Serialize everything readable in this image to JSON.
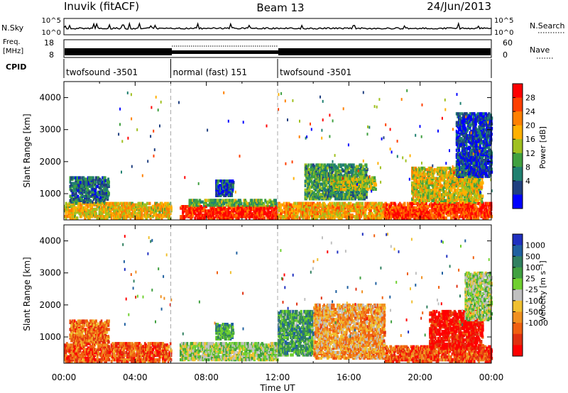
{
  "header": {
    "station": "Inuvik (fitACF)",
    "beam": "Beam 13",
    "date": "24/Jun/2013"
  },
  "noise_panel": {
    "left_label": "N.Sky",
    "right_label": "N.Search",
    "left_ticks": [
      "10^5",
      "10^0"
    ],
    "right_ticks": [
      "10^5",
      "10^0"
    ]
  },
  "freq_panel": {
    "left_label_line1": "Freq.",
    "left_label_line2": "[MHz]",
    "left_ticks": [
      "18",
      "8"
    ],
    "right_ticks": [
      "60",
      "0"
    ],
    "right_label": "Nave"
  },
  "cpid_panel": {
    "label": "CPID",
    "segments": [
      {
        "name": "twofsound -3501",
        "start_h": 0,
        "end_h": 6
      },
      {
        "name": "normal (fast) 151",
        "start_h": 6,
        "end_h": 12
      },
      {
        "name": "twofsound -3501",
        "start_h": 12,
        "end_h": 24
      }
    ]
  },
  "power_colorbar": {
    "label": "Power [dB]",
    "ticks": [
      "28",
      "24",
      "20",
      "16",
      "12",
      "8",
      "4"
    ],
    "colors": [
      "#ff0000",
      "#ff4000",
      "#ff8000",
      "#ffb000",
      "#a0c020",
      "#40a040",
      "#208070",
      "#204080",
      "#0000ff"
    ]
  },
  "velocity_colorbar": {
    "label": "Velocity [m s⁻¹]",
    "ticks": [
      "1000",
      "500",
      "100",
      "25",
      "-25",
      "-100",
      "-500",
      "-1000"
    ],
    "colors": [
      "#2030c0",
      "#2060a0",
      "#308060",
      "#40a040",
      "#70d030",
      "#c0c0c0",
      "#f0c030",
      "#f09020",
      "#f06010",
      "#e03010",
      "#ff0000"
    ]
  },
  "chart_data": [
    {
      "type": "heatmap",
      "name": "power",
      "xlabel": "",
      "ylabel": "Slant Range [km]",
      "x_range_h": [
        0,
        24
      ],
      "ylim": [
        180,
        4500
      ],
      "yticks": [
        "4000",
        "3000",
        "2000",
        "1000"
      ],
      "ytick_values": [
        4000,
        3000,
        2000,
        1000
      ],
      "patches": [
        {
          "x0": 0,
          "x1": 6,
          "y0": 200,
          "y1": 700,
          "level": 0.6
        },
        {
          "x0": 0.3,
          "x1": 2.5,
          "y0": 700,
          "y1": 1500,
          "level": 0.25
        },
        {
          "x0": 6.5,
          "x1": 12,
          "y0": 200,
          "y1": 600,
          "level": 0.9
        },
        {
          "x0": 7,
          "x1": 12,
          "y0": 600,
          "y1": 800,
          "level": 0.4
        },
        {
          "x0": 8.5,
          "x1": 9.5,
          "y0": 900,
          "y1": 1400,
          "level": 0.2
        },
        {
          "x0": 12,
          "x1": 18,
          "y0": 200,
          "y1": 700,
          "level": 0.65
        },
        {
          "x0": 13.5,
          "x1": 17,
          "y0": 800,
          "y1": 1900,
          "level": 0.35
        },
        {
          "x0": 15,
          "x1": 17.5,
          "y0": 1100,
          "y1": 1500,
          "level": 0.5
        },
        {
          "x0": 18,
          "x1": 24,
          "y0": 200,
          "y1": 700,
          "level": 0.85
        },
        {
          "x0": 19.5,
          "x1": 23.5,
          "y0": 700,
          "y1": 1800,
          "level": 0.55
        },
        {
          "x0": 22,
          "x1": 24,
          "y0": 1500,
          "y1": 3500,
          "level": 0.15
        }
      ]
    },
    {
      "type": "heatmap",
      "name": "velocity",
      "xlabel": "Time UT",
      "ylabel": "Slant Range [km]",
      "x_range_h": [
        0,
        24
      ],
      "ylim": [
        180,
        4500
      ],
      "yticks": [
        "4000",
        "3000",
        "2000",
        "1000"
      ],
      "ytick_values": [
        4000,
        3000,
        2000,
        1000
      ],
      "xticks": [
        "00:00",
        "04:00",
        "08:00",
        "12:00",
        "16:00",
        "20:00",
        "00:00"
      ],
      "xtick_values": [
        0,
        4,
        8,
        12,
        16,
        20,
        24
      ],
      "patches": [
        {
          "x0": 0,
          "x1": 6,
          "y0": 200,
          "y1": 800,
          "level": 0.8
        },
        {
          "x0": 0.3,
          "x1": 2.5,
          "y0": 800,
          "y1": 1500,
          "level": 0.75
        },
        {
          "x0": 6.5,
          "x1": 12,
          "y0": 250,
          "y1": 800,
          "level": 0.45
        },
        {
          "x0": 8.5,
          "x1": 9.5,
          "y0": 900,
          "y1": 1400,
          "level": 0.3
        },
        {
          "x0": 12,
          "x1": 14,
          "y0": 400,
          "y1": 1800,
          "level": 0.3
        },
        {
          "x0": 14,
          "x1": 18,
          "y0": 300,
          "y1": 2000,
          "level": 0.65
        },
        {
          "x0": 18,
          "x1": 24,
          "y0": 200,
          "y1": 700,
          "level": 0.8
        },
        {
          "x0": 20.5,
          "x1": 23.5,
          "y0": 600,
          "y1": 1800,
          "level": 0.95
        },
        {
          "x0": 22.5,
          "x1": 24,
          "y0": 1500,
          "y1": 3000,
          "level": 0.45
        }
      ]
    }
  ]
}
